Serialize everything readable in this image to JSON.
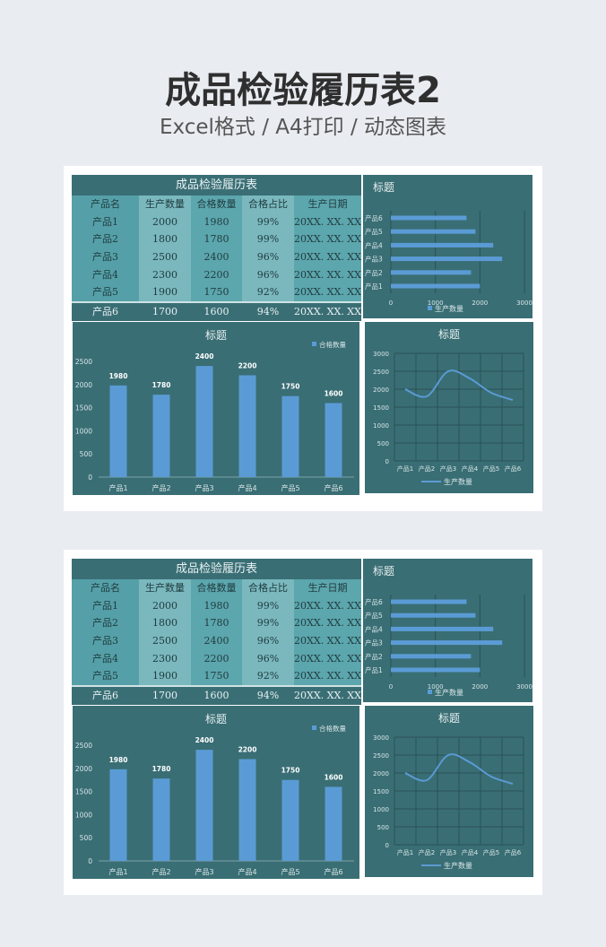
{
  "header": {
    "title": "成品检验履历表2",
    "subtitle": "Excel格式 / A4打印 / 动态图表"
  },
  "table": {
    "title": "成品检验履历表",
    "columns": [
      "产品名",
      "生产数量",
      "合格数量",
      "合格占比",
      "生产日期"
    ],
    "rows": [
      [
        "产品1",
        "2000",
        "1980",
        "99%",
        "20XX. XX. XX"
      ],
      [
        "产品2",
        "1800",
        "1780",
        "99%",
        "20XX. XX. XX"
      ],
      [
        "产品3",
        "2500",
        "2400",
        "96%",
        "20XX. XX. XX"
      ],
      [
        "产品4",
        "2300",
        "2200",
        "96%",
        "20XX. XX. XX"
      ],
      [
        "产品5",
        "1900",
        "1750",
        "92%",
        "20XX. XX. XX"
      ],
      [
        "产品6",
        "1700",
        "1600",
        "94%",
        "20XX. XX. XX"
      ]
    ]
  },
  "colors": {
    "teal": "#396e74",
    "bar": "#5b9bd5"
  },
  "chart_data": [
    {
      "type": "bar",
      "orientation": "horizontal",
      "title": "标题",
      "categories": [
        "产品1",
        "产品2",
        "产品3",
        "产品4",
        "产品5",
        "产品6"
      ],
      "series": [
        {
          "name": "生产数量",
          "values": [
            2000,
            1800,
            2500,
            2300,
            1900,
            1700
          ]
        }
      ],
      "xlim": [
        0,
        3000
      ],
      "ticks": [
        "0",
        "1000",
        "2000",
        "3000"
      ],
      "legend": "bottom"
    },
    {
      "type": "bar",
      "title": "标题",
      "categories": [
        "产品1",
        "产品2",
        "产品3",
        "产品4",
        "产品5",
        "产品6"
      ],
      "series": [
        {
          "name": "合格数量",
          "values": [
            1980,
            1780,
            2400,
            2200,
            1750,
            1600
          ]
        }
      ],
      "ylim": [
        0,
        2500
      ],
      "ticks": [
        "0",
        "500",
        "1000",
        "1500",
        "2000",
        "2500"
      ],
      "legend": "top-right",
      "data_labels": true
    },
    {
      "type": "line",
      "title": "标题",
      "categories": [
        "产品1",
        "产品2",
        "产品3",
        "产品4",
        "产品5",
        "产品6"
      ],
      "series": [
        {
          "name": "生产数量",
          "values": [
            2000,
            1800,
            2500,
            2300,
            1900,
            1700
          ]
        }
      ],
      "ylim": [
        0,
        3000
      ],
      "ticks": [
        "0",
        "500",
        "1000",
        "1500",
        "2000",
        "2500",
        "3000"
      ],
      "grid": true,
      "legend": "bottom"
    }
  ]
}
